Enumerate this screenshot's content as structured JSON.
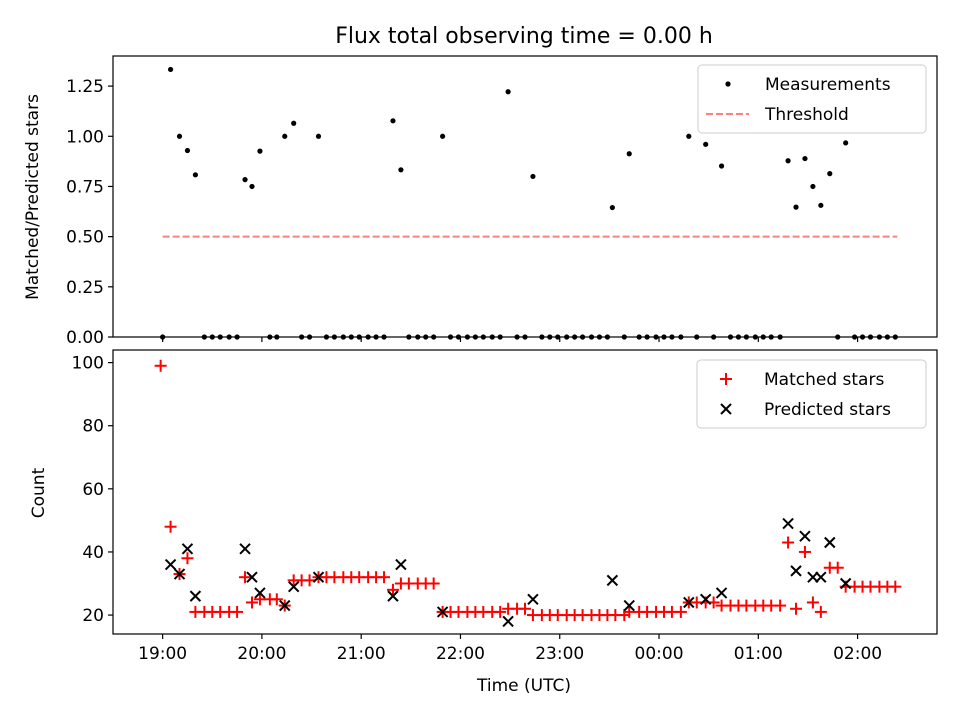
{
  "figure": {
    "title": "Flux total observing time = 0.00 h",
    "xlabel": "Time (UTC)"
  },
  "colors": {
    "measurement": "#000000",
    "threshold": "#ff7f7f",
    "matched": "#ff0000",
    "predicted": "#000000"
  },
  "chart_data": [
    {
      "type": "scatter",
      "ylabel": "Matched/Predicted stars",
      "x_unit": "hours after 19:00 UTC",
      "xlim": [
        18.5,
        26.8
      ],
      "ylim": [
        0,
        1.4
      ],
      "yticks": [
        "0.00",
        "0.25",
        "0.50",
        "0.75",
        "1.00",
        "1.25"
      ],
      "xticks": [
        "19:00",
        "20:00",
        "21:00",
        "22:00",
        "23:00",
        "00:00",
        "01:00",
        "02:00"
      ],
      "legend_position": "top-right",
      "series": [
        {
          "name": "Measurements",
          "marker": "dot",
          "points": [
            [
              19.0,
              0
            ],
            [
              19.08,
              1.333
            ],
            [
              19.17,
              1.0
            ],
            [
              19.25,
              0.929
            ],
            [
              19.33,
              0.808
            ],
            [
              19.42,
              0
            ],
            [
              19.5,
              0
            ],
            [
              19.58,
              0
            ],
            [
              19.67,
              0
            ],
            [
              19.75,
              0
            ],
            [
              19.83,
              0.784
            ],
            [
              19.9,
              0.75
            ],
            [
              19.98,
              0.926
            ],
            [
              20.08,
              0
            ],
            [
              20.15,
              0
            ],
            [
              20.23,
              1.0
            ],
            [
              20.32,
              1.065
            ],
            [
              20.4,
              0
            ],
            [
              20.48,
              0
            ],
            [
              20.57,
              1.0
            ],
            [
              20.65,
              0
            ],
            [
              20.73,
              0
            ],
            [
              20.82,
              0
            ],
            [
              20.9,
              0
            ],
            [
              20.98,
              0
            ],
            [
              21.07,
              0
            ],
            [
              21.15,
              0
            ],
            [
              21.23,
              0
            ],
            [
              21.32,
              1.077
            ],
            [
              21.4,
              0.833
            ],
            [
              21.48,
              0
            ],
            [
              21.57,
              0
            ],
            [
              21.65,
              0
            ],
            [
              21.73,
              0
            ],
            [
              21.82,
              1.0
            ],
            [
              21.9,
              0
            ],
            [
              21.98,
              0
            ],
            [
              22.07,
              0
            ],
            [
              22.15,
              0
            ],
            [
              22.23,
              0
            ],
            [
              22.32,
              0
            ],
            [
              22.4,
              0
            ],
            [
              22.48,
              1.222
            ],
            [
              22.57,
              0
            ],
            [
              22.65,
              0
            ],
            [
              22.73,
              0.8
            ],
            [
              22.82,
              0
            ],
            [
              22.9,
              0
            ],
            [
              22.98,
              0
            ],
            [
              23.07,
              0
            ],
            [
              23.15,
              0
            ],
            [
              23.23,
              0
            ],
            [
              23.32,
              0
            ],
            [
              23.4,
              0
            ],
            [
              23.48,
              0
            ],
            [
              23.53,
              0.645
            ],
            [
              23.65,
              0
            ],
            [
              23.7,
              0.913
            ],
            [
              23.8,
              0
            ],
            [
              23.88,
              0
            ],
            [
              23.97,
              0
            ],
            [
              24.05,
              0
            ],
            [
              24.13,
              0
            ],
            [
              24.22,
              0
            ],
            [
              24.3,
              1.0
            ],
            [
              24.38,
              0
            ],
            [
              24.47,
              0.96
            ],
            [
              24.55,
              0
            ],
            [
              24.63,
              0.852
            ],
            [
              24.72,
              0
            ],
            [
              24.8,
              0
            ],
            [
              24.88,
              0
            ],
            [
              24.97,
              0
            ],
            [
              25.05,
              0
            ],
            [
              25.13,
              0
            ],
            [
              25.22,
              0
            ],
            [
              25.3,
              0.878
            ],
            [
              25.38,
              0.647
            ],
            [
              25.47,
              0.889
            ],
            [
              25.55,
              0.75
            ],
            [
              25.63,
              0.656
            ],
            [
              25.72,
              0.814
            ],
            [
              25.8,
              0
            ],
            [
              25.88,
              0.967
            ],
            [
              25.97,
              0
            ],
            [
              26.05,
              0
            ],
            [
              26.13,
              0
            ],
            [
              26.22,
              0
            ],
            [
              26.3,
              0
            ],
            [
              26.38,
              0
            ]
          ]
        },
        {
          "name": "Threshold",
          "marker": "dashed-line",
          "points": [
            [
              19.0,
              0.5
            ],
            [
              26.4,
              0.5
            ]
          ]
        }
      ]
    },
    {
      "type": "scatter",
      "ylabel": "Count",
      "x_unit": "hours after 19:00 UTC",
      "xlim": [
        18.5,
        26.8
      ],
      "ylim": [
        14,
        104
      ],
      "yticks": [
        "20",
        "40",
        "60",
        "80",
        "100"
      ],
      "xticks": [
        "19:00",
        "20:00",
        "21:00",
        "22:00",
        "23:00",
        "00:00",
        "01:00",
        "02:00"
      ],
      "legend_position": "top-right",
      "series": [
        {
          "name": "Matched stars",
          "marker": "plus",
          "points": [
            [
              18.98,
              99
            ],
            [
              19.08,
              48
            ],
            [
              19.17,
              33
            ],
            [
              19.25,
              38
            ],
            [
              19.33,
              21
            ],
            [
              19.42,
              21
            ],
            [
              19.5,
              21
            ],
            [
              19.58,
              21
            ],
            [
              19.67,
              21
            ],
            [
              19.75,
              21
            ],
            [
              19.83,
              32
            ],
            [
              19.9,
              24
            ],
            [
              19.98,
              25
            ],
            [
              20.08,
              25
            ],
            [
              20.15,
              25
            ],
            [
              20.23,
              23
            ],
            [
              20.32,
              31
            ],
            [
              20.4,
              31
            ],
            [
              20.48,
              31
            ],
            [
              20.57,
              32
            ],
            [
              20.65,
              32
            ],
            [
              20.73,
              32
            ],
            [
              20.82,
              32
            ],
            [
              20.9,
              32
            ],
            [
              20.98,
              32
            ],
            [
              21.07,
              32
            ],
            [
              21.15,
              32
            ],
            [
              21.23,
              32
            ],
            [
              21.32,
              28
            ],
            [
              21.4,
              30
            ],
            [
              21.48,
              30
            ],
            [
              21.57,
              30
            ],
            [
              21.65,
              30
            ],
            [
              21.73,
              30
            ],
            [
              21.82,
              21
            ],
            [
              21.9,
              21
            ],
            [
              21.98,
              21
            ],
            [
              22.07,
              21
            ],
            [
              22.15,
              21
            ],
            [
              22.23,
              21
            ],
            [
              22.32,
              21
            ],
            [
              22.4,
              21
            ],
            [
              22.48,
              22
            ],
            [
              22.57,
              22
            ],
            [
              22.65,
              22
            ],
            [
              22.73,
              20
            ],
            [
              22.82,
              20
            ],
            [
              22.9,
              20
            ],
            [
              22.98,
              20
            ],
            [
              23.07,
              20
            ],
            [
              23.15,
              20
            ],
            [
              23.23,
              20
            ],
            [
              23.32,
              20
            ],
            [
              23.4,
              20
            ],
            [
              23.48,
              20
            ],
            [
              23.56,
              20
            ],
            [
              23.65,
              20
            ],
            [
              23.7,
              21
            ],
            [
              23.8,
              21
            ],
            [
              23.88,
              21
            ],
            [
              23.97,
              21
            ],
            [
              24.05,
              21
            ],
            [
              24.13,
              21
            ],
            [
              24.22,
              21
            ],
            [
              24.3,
              24
            ],
            [
              24.38,
              24
            ],
            [
              24.47,
              24
            ],
            [
              24.55,
              24
            ],
            [
              24.63,
              23
            ],
            [
              24.72,
              23
            ],
            [
              24.8,
              23
            ],
            [
              24.88,
              23
            ],
            [
              24.97,
              23
            ],
            [
              25.05,
              23
            ],
            [
              25.13,
              23
            ],
            [
              25.22,
              23
            ],
            [
              25.3,
              43
            ],
            [
              25.38,
              22
            ],
            [
              25.47,
              40
            ],
            [
              25.55,
              24
            ],
            [
              25.63,
              21
            ],
            [
              25.72,
              35
            ],
            [
              25.8,
              35
            ],
            [
              25.88,
              29
            ],
            [
              25.97,
              29
            ],
            [
              26.05,
              29
            ],
            [
              26.13,
              29
            ],
            [
              26.22,
              29
            ],
            [
              26.3,
              29
            ],
            [
              26.38,
              29
            ]
          ]
        },
        {
          "name": "Predicted stars",
          "marker": "x",
          "points": [
            [
              19.08,
              36
            ],
            [
              19.17,
              33
            ],
            [
              19.25,
              41
            ],
            [
              19.33,
              26
            ],
            [
              19.83,
              41
            ],
            [
              19.9,
              32
            ],
            [
              19.98,
              27
            ],
            [
              20.23,
              23
            ],
            [
              20.32,
              29
            ],
            [
              20.57,
              32
            ],
            [
              21.32,
              26
            ],
            [
              21.4,
              36
            ],
            [
              21.82,
              21
            ],
            [
              22.48,
              18
            ],
            [
              22.73,
              25
            ],
            [
              23.53,
              31
            ],
            [
              23.7,
              23
            ],
            [
              24.3,
              24
            ],
            [
              24.47,
              25
            ],
            [
              24.63,
              27
            ],
            [
              25.3,
              49
            ],
            [
              25.38,
              34
            ],
            [
              25.47,
              45
            ],
            [
              25.55,
              32
            ],
            [
              25.63,
              32
            ],
            [
              25.72,
              43
            ],
            [
              25.88,
              30
            ]
          ]
        }
      ]
    }
  ]
}
